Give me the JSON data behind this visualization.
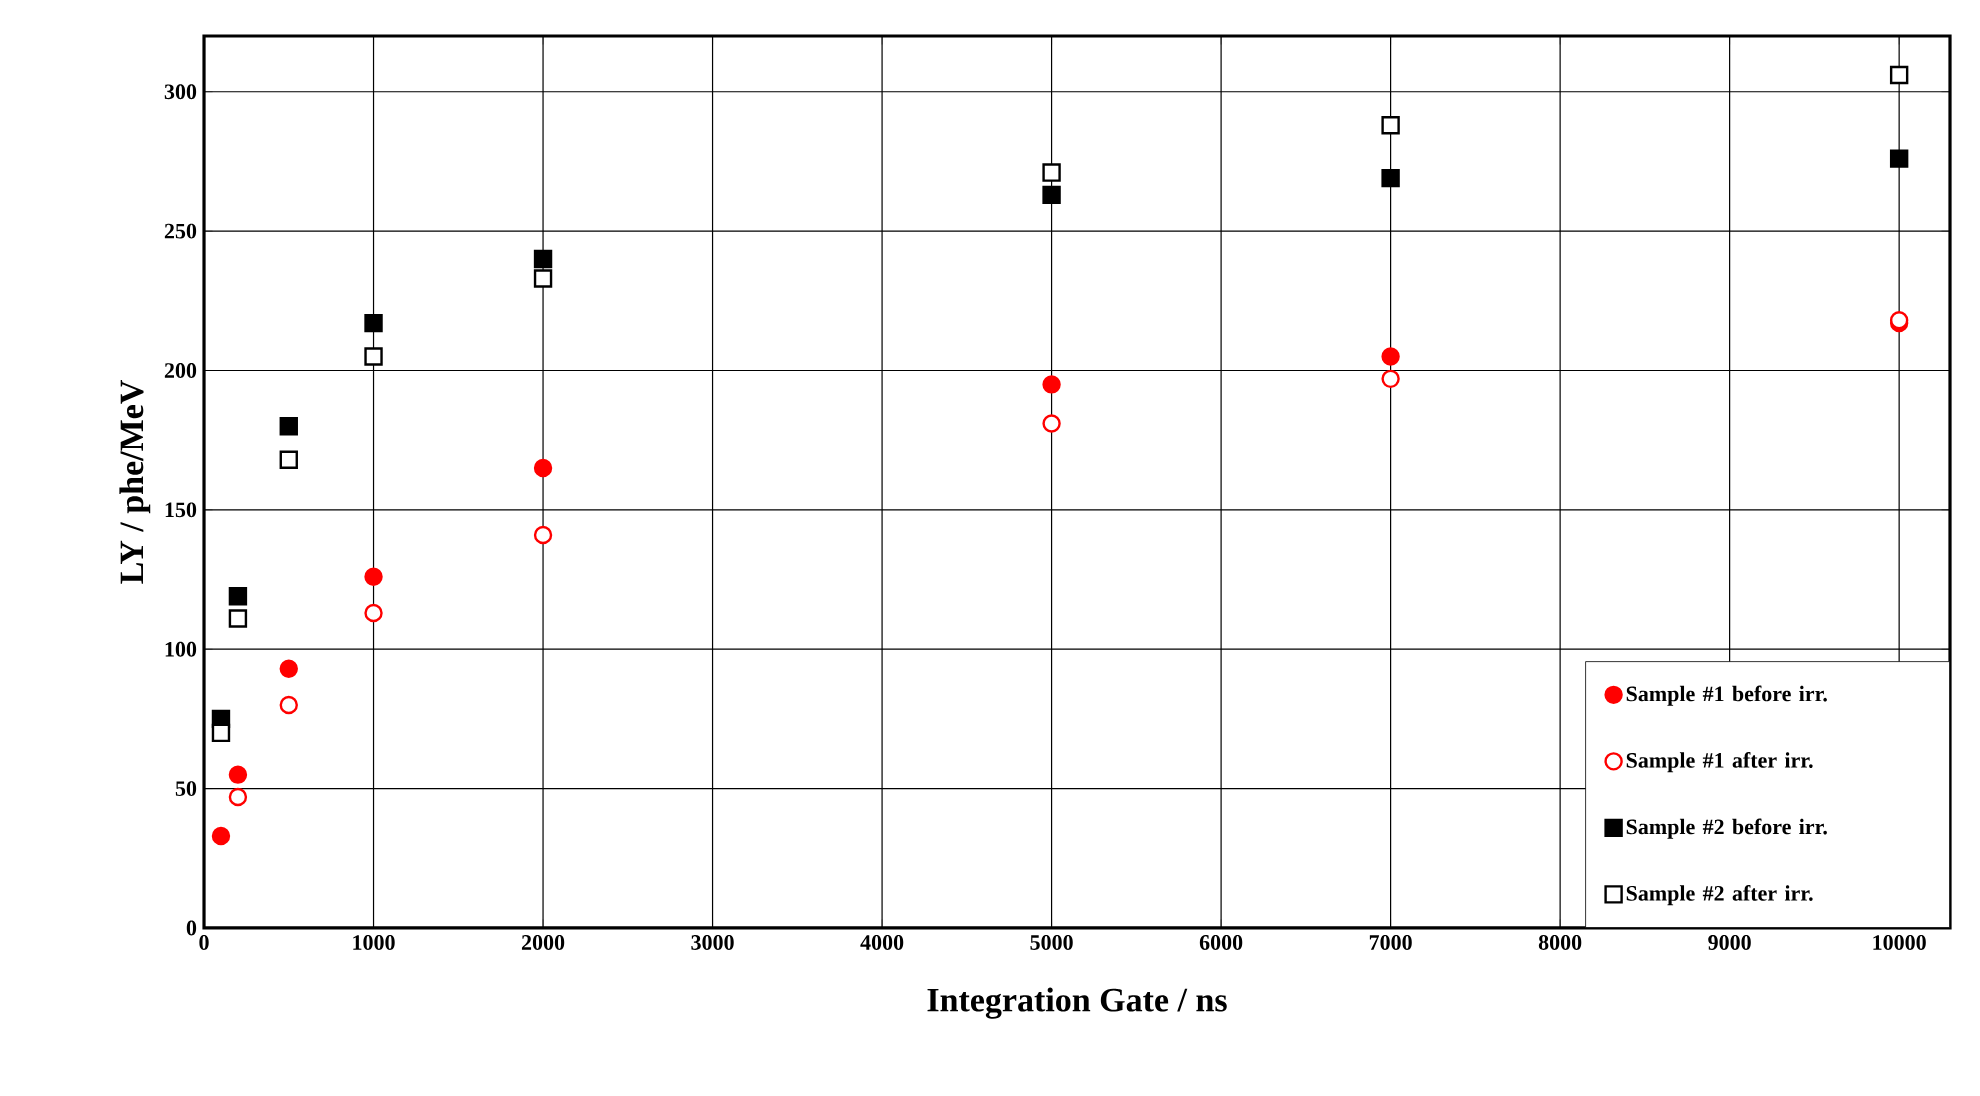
{
  "chart_data": {
    "type": "scatter",
    "xlabel": "Integration Gate / ns",
    "ylabel": "LY / phe/MeV",
    "xlim": [
      0,
      10300
    ],
    "ylim": [
      0,
      320
    ],
    "xticks": [
      0,
      1000,
      2000,
      3000,
      4000,
      5000,
      6000,
      7000,
      8000,
      9000,
      10000
    ],
    "yticks": [
      0,
      50,
      100,
      150,
      200,
      250,
      300
    ],
    "grid": true,
    "legend": "bottom right",
    "series": [
      {
        "name": "Sample #1 before irr.",
        "color": "#ff0000",
        "marker": "circle",
        "x": [
          100,
          200,
          500,
          1000,
          2000,
          5000,
          7000,
          10000
        ],
        "values": [
          33,
          55,
          93,
          126,
          165,
          195,
          205,
          217
        ]
      },
      {
        "name": "Sample #1 after irr.",
        "color": "#ff0000",
        "marker": "circle-open",
        "x": [
          200,
          500,
          1000,
          2000,
          5000,
          7000,
          10000
        ],
        "values": [
          47,
          80,
          113,
          141,
          181,
          197,
          218
        ]
      },
      {
        "name": "Sample #2 before irr.",
        "color": "#000000",
        "marker": "square",
        "x": [
          100,
          200,
          500,
          1000,
          2000,
          5000,
          7000,
          10000
        ],
        "values": [
          75,
          119,
          180,
          217,
          240,
          263,
          269,
          276
        ]
      },
      {
        "name": "Sample #2 after irr.",
        "color": "#000000",
        "marker": "square-open",
        "x": [
          100,
          200,
          500,
          1000,
          2000,
          5000,
          7000,
          10000
        ],
        "values": [
          70,
          111,
          168,
          205,
          233,
          271,
          288,
          306
        ]
      }
    ]
  }
}
